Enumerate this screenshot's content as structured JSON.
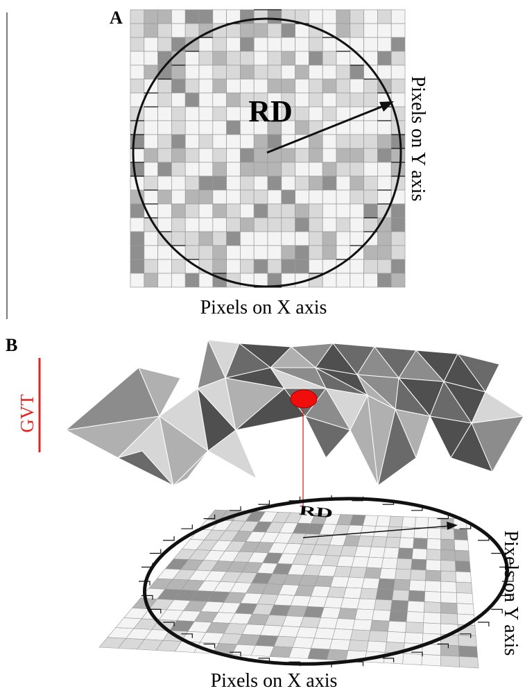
{
  "panel_a": {
    "letter": "A",
    "radius_label": "RD",
    "x_axis_label": "Pixels on X axis",
    "y_axis_label": "Pixels on Y axis"
  },
  "panel_b": {
    "letter": "B",
    "gvt_label": "GVT",
    "radius_label": "RD",
    "x_axis_label": "Pixels on X axis",
    "y_axis_label": "Pixels on Y axis"
  },
  "colors": {
    "accent_red": "#e8201e",
    "outline": "#111111",
    "grid_line": "#9a9a9a",
    "pixel_shades": [
      "#f4f4f4",
      "#d9d9d9",
      "#b5b5b5",
      "#8f8f8f"
    ],
    "surface_shades": [
      "#d6d6d6",
      "#b0b0b0",
      "#8c8c8c",
      "#6a6a6a",
      "#4f4f4f"
    ]
  }
}
